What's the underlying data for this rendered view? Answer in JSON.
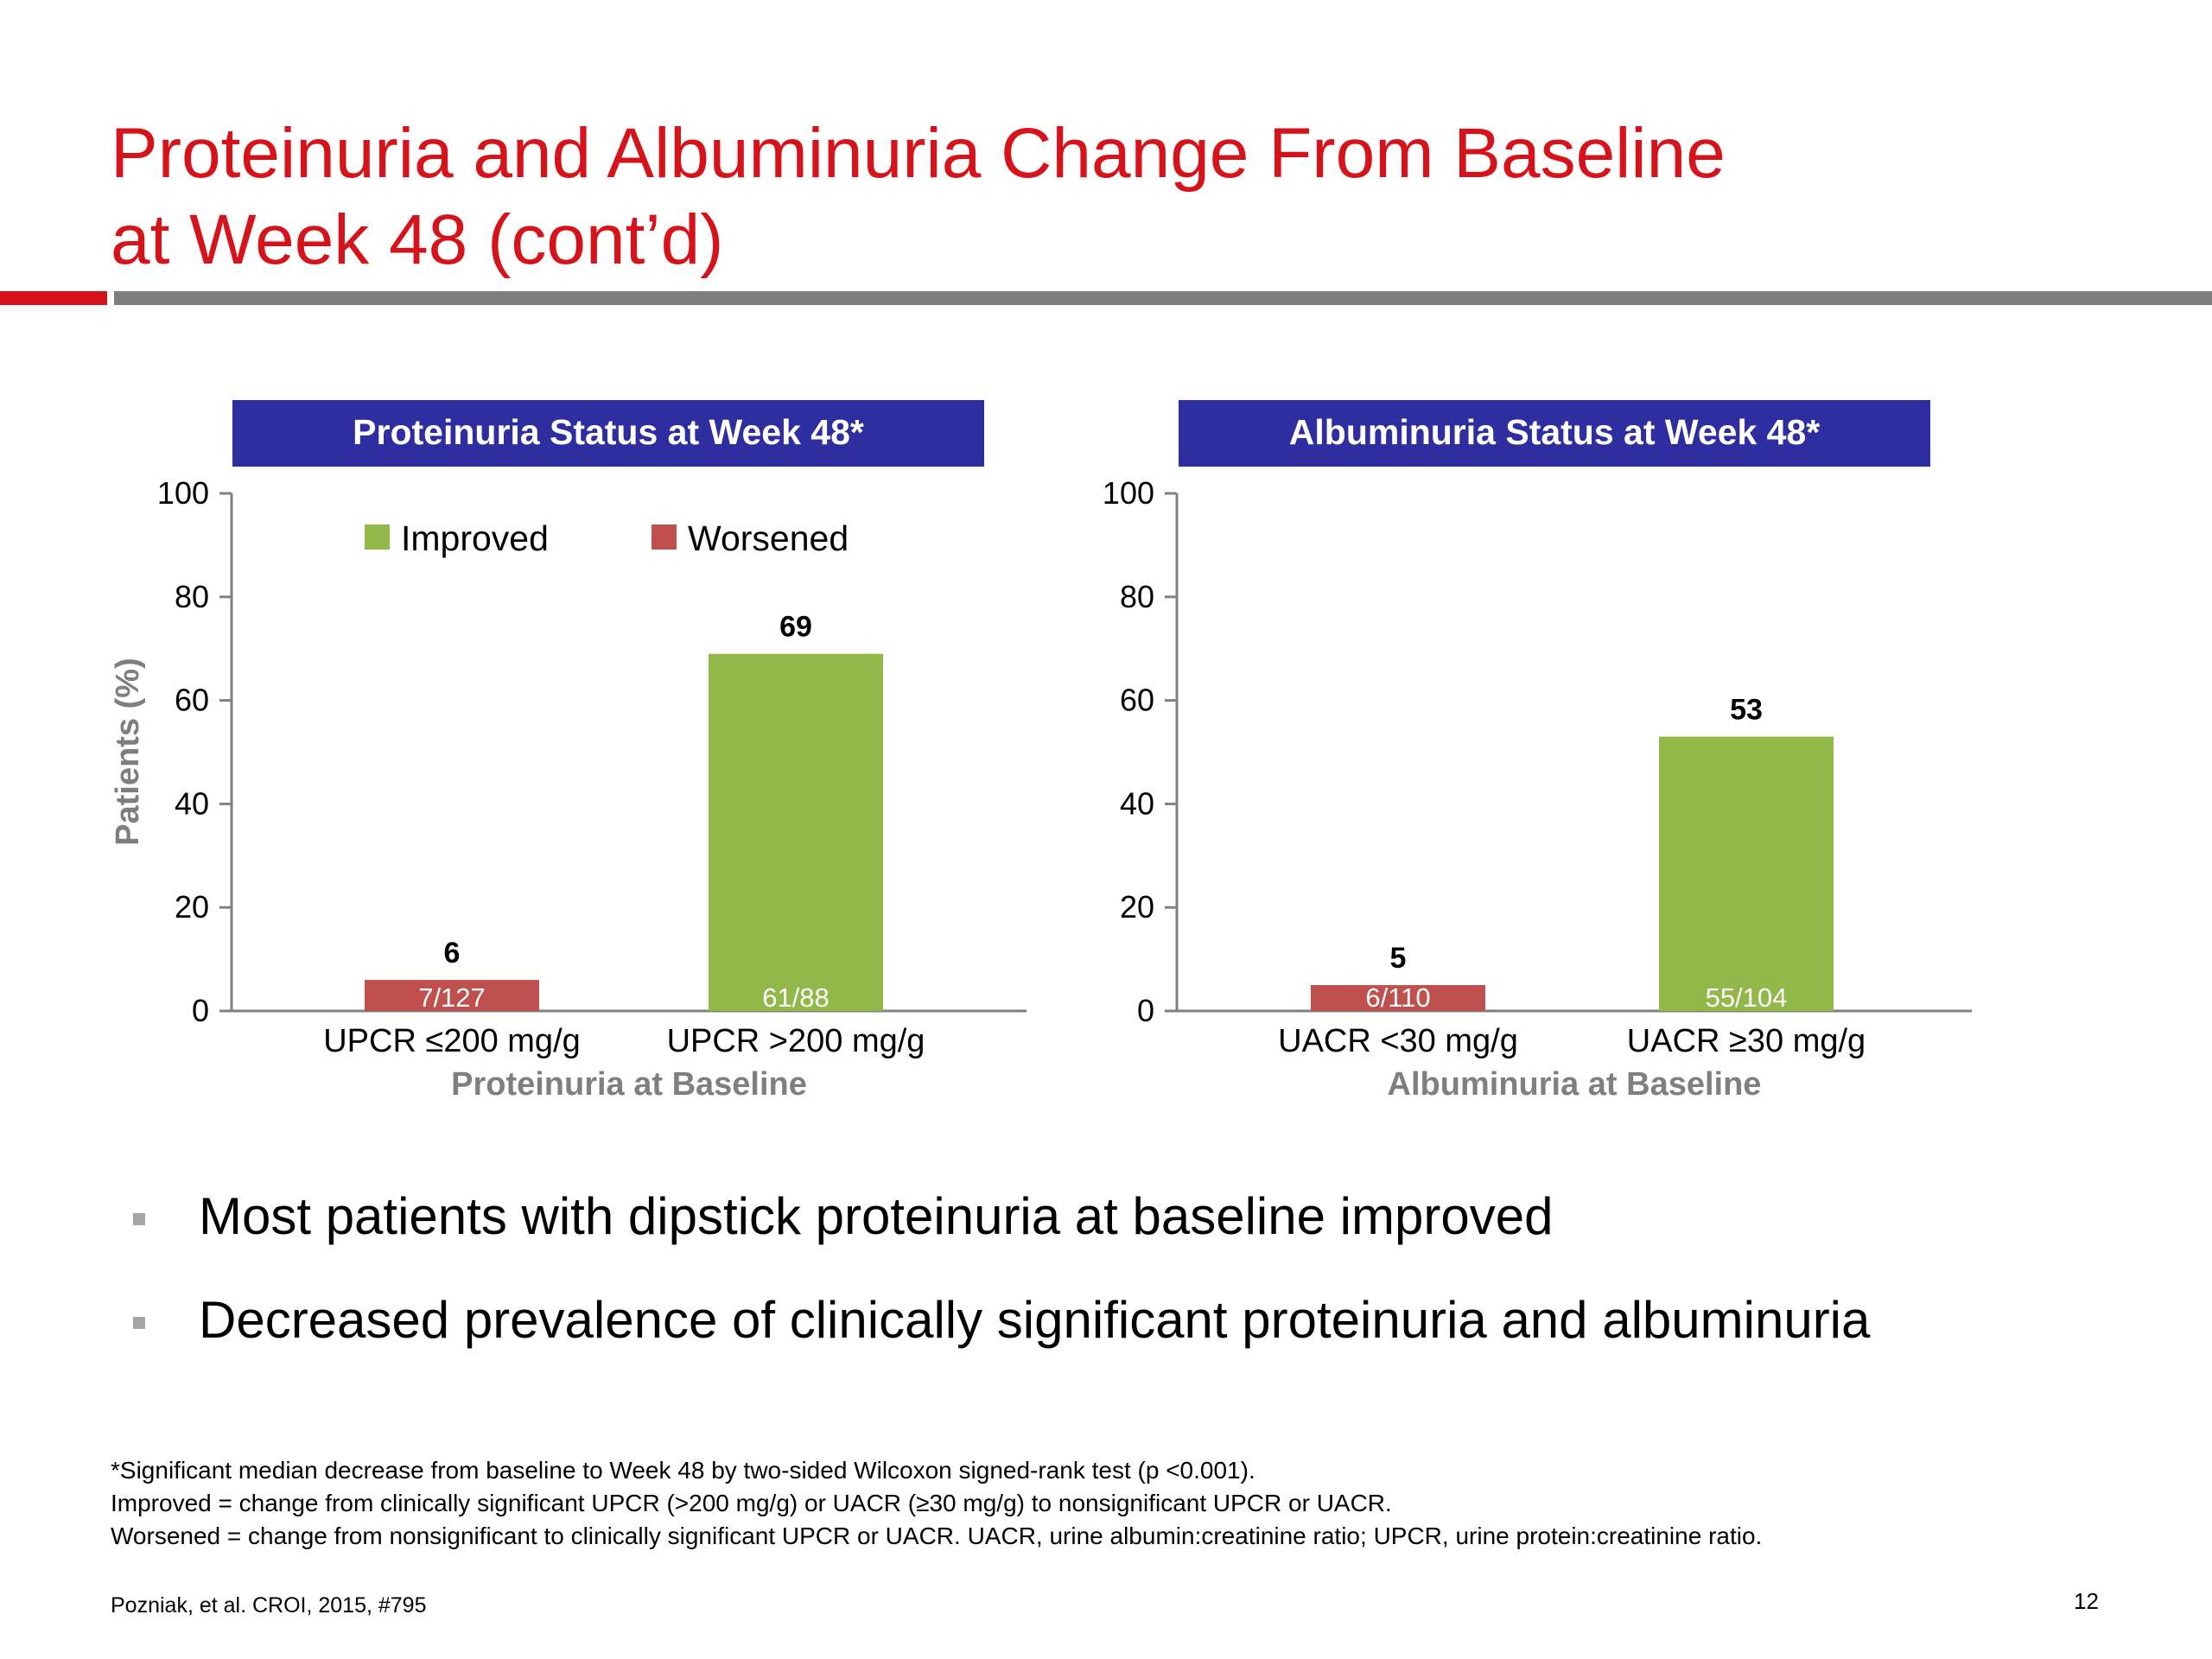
{
  "slide": {
    "title_line1": "Proteinuria and Albuminuria Change From Baseline",
    "title_line2": "at Week 48 (cont’d)",
    "accent_color": "#d6121a",
    "rule_color": "#7f7f7f"
  },
  "chart_data": [
    {
      "type": "bar",
      "title": "Proteinuria Status at Week 48*",
      "ylabel": "Patients (%)",
      "xlabel": "Proteinuria at Baseline",
      "ylim": [
        0,
        100
      ],
      "yticks": [
        0,
        20,
        40,
        60,
        80,
        100
      ],
      "grid": false,
      "legend": {
        "placement": "top",
        "entries": [
          {
            "name": "Improved",
            "color": "#92b84a"
          },
          {
            "name": "Worsened",
            "color": "#c0504d"
          }
        ]
      },
      "categories": [
        "UPCR ≤200 mg/g",
        "UPCR >200 mg/g"
      ],
      "bars": [
        {
          "category": "UPCR ≤200 mg/g",
          "series": "Worsened",
          "value": 6,
          "label": "6",
          "inner_label": "7/127",
          "color": "#c0504d"
        },
        {
          "category": "UPCR >200 mg/g",
          "series": "Improved",
          "value": 69,
          "label": "69",
          "inner_label": "61/88",
          "color": "#92b84a"
        }
      ]
    },
    {
      "type": "bar",
      "title": "Albuminuria Status at Week 48*",
      "ylabel": "",
      "xlabel": "Albuminuria at Baseline",
      "ylim": [
        0,
        100
      ],
      "yticks": [
        0,
        20,
        40,
        60,
        80,
        100
      ],
      "grid": false,
      "categories": [
        "UACR <30 mg/g",
        "UACR ≥30 mg/g"
      ],
      "bars": [
        {
          "category": "UACR <30 mg/g",
          "series": "Worsened",
          "value": 5,
          "label": "5",
          "inner_label": "6/110",
          "color": "#c0504d"
        },
        {
          "category": "UACR ≥30 mg/g",
          "series": "Improved",
          "value": 53,
          "label": "53",
          "inner_label": "55/104",
          "color": "#92b84a"
        }
      ]
    }
  ],
  "banner_color": "#2e2ea0",
  "bullets": [
    "Most patients with dipstick proteinuria at baseline improved",
    "Decreased prevalence of clinically significant proteinuria and albuminuria"
  ],
  "footnotes": [
    "*Significant median decrease from baseline to Week 48 by two-sided Wilcoxon signed-rank test (p <0.001).",
    "Improved = change from clinically significant UPCR (>200 mg/g) or UACR (≥30 mg/g) to nonsignificant UPCR or UACR.",
    "Worsened = change from nonsignificant to clinically significant UPCR or UACR. UACR, urine albumin:creatinine ratio; UPCR, urine protein:creatinine ratio."
  ],
  "reference": "Pozniak, et al. CROI, 2015, #795",
  "page_number": "12"
}
